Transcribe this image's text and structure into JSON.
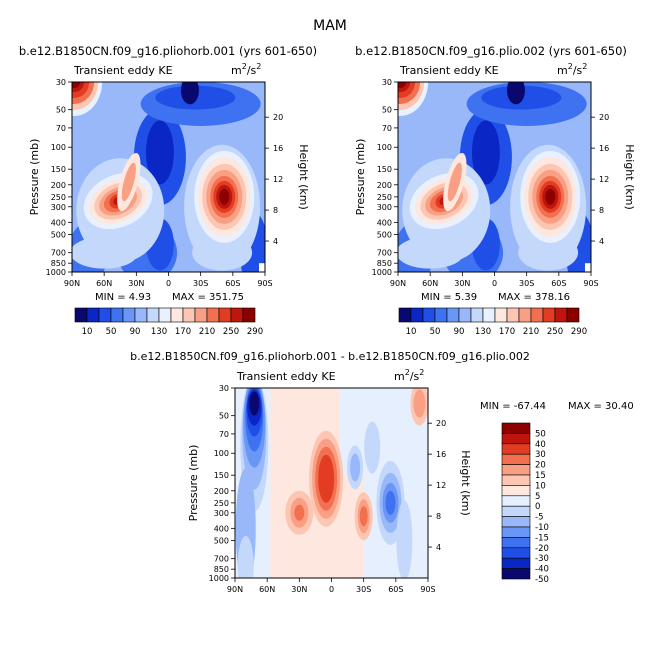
{
  "figure": {
    "season": "MAM",
    "variable": "Transient eddy KE",
    "units_base": "m",
    "units_exp": "2",
    "units_den_base": "/s",
    "units_den_exp": "2"
  },
  "colors": {
    "abs_levels_fill": [
      "#08086e",
      "#0a27c5",
      "#1f4fe6",
      "#3f72f0",
      "#6a97f6",
      "#98b8fa",
      "#c4d8fc",
      "#e9f0fe",
      "#fde7de",
      "#fcc6b3",
      "#f9a084",
      "#f26f4f",
      "#e23d22",
      "#c0140f",
      "#8c0000"
    ],
    "diff_levels_fill": [
      "#08086e",
      "#0a27c5",
      "#1f4fe6",
      "#3f72f0",
      "#6a97f6",
      "#98b8fa",
      "#c4d8fc",
      "#e6effe",
      "#fde7de",
      "#fcc6b3",
      "#f9a084",
      "#f26f4f",
      "#e23d22",
      "#c0140f",
      "#8c0000"
    ]
  },
  "chart_data": [
    {
      "type": "heatmap",
      "panel": "left",
      "title": "b.e12.B1850CN.f09_g16.pliohorb.001 (yrs 601-650)",
      "subtitle": "Transient eddy KE",
      "xlabel": "",
      "ylabel": "Pressure (mb)",
      "ylabel_right": "Height (km)",
      "x_ticks": [
        "90N",
        "60N",
        "30N",
        "0",
        "30S",
        "60S",
        "90S"
      ],
      "y_ticks": [
        "30",
        "50",
        "70",
        "100",
        "150",
        "200",
        "250",
        "300",
        "400",
        "500",
        "700",
        "850",
        "1000"
      ],
      "y_ticks_right": [
        "20",
        "16",
        "12",
        "8",
        "4"
      ],
      "min_label": "MIN = 4.93",
      "max_label": "MAX = 351.75",
      "min": 4.93,
      "max": 351.75,
      "colorbar_labels": [
        "10",
        "50",
        "90",
        "130",
        "170",
        "210",
        "250",
        "290"
      ],
      "features": [
        {
          "desc": "NH upper-troposphere jet maximum",
          "lat": 48,
          "pressure_mb": 280,
          "value": 330
        },
        {
          "desc": "SH upper-troposphere jet maximum",
          "lat": -52,
          "pressure_mb": 250,
          "value": 350
        },
        {
          "desc": "NH stratospheric polar maximum",
          "lat": 85,
          "pressure_mb": 30,
          "value": 290
        }
      ]
    },
    {
      "type": "heatmap",
      "panel": "right",
      "title": "b.e12.B1850CN.f09_g16.plio.002 (yrs 601-650)",
      "subtitle": "Transient eddy KE",
      "xlabel": "",
      "ylabel": "Pressure (mb)",
      "ylabel_right": "Height (km)",
      "x_ticks": [
        "90N",
        "60N",
        "30N",
        "0",
        "30S",
        "60S",
        "90S"
      ],
      "y_ticks": [
        "30",
        "50",
        "70",
        "100",
        "150",
        "200",
        "250",
        "300",
        "400",
        "500",
        "700",
        "850",
        "1000"
      ],
      "y_ticks_right": [
        "20",
        "16",
        "12",
        "8",
        "4"
      ],
      "min_label": "MIN = 5.39",
      "max_label": "MAX = 378.16",
      "min": 5.39,
      "max": 378.16,
      "colorbar_labels": [
        "10",
        "50",
        "90",
        "130",
        "170",
        "210",
        "250",
        "290"
      ],
      "features": [
        {
          "desc": "NH upper-troposphere jet maximum",
          "lat": 48,
          "pressure_mb": 280,
          "value": 300
        },
        {
          "desc": "SH upper-troposphere jet maximum",
          "lat": -52,
          "pressure_mb": 250,
          "value": 378
        },
        {
          "desc": "NH stratospheric polar maximum",
          "lat": 85,
          "pressure_mb": 30,
          "value": 290
        }
      ]
    },
    {
      "type": "heatmap",
      "panel": "difference",
      "title": "b.e12.B1850CN.f09_g16.pliohorb.001 - b.e12.B1850CN.f09_g16.plio.002",
      "subtitle": "Transient eddy KE",
      "xlabel": "",
      "ylabel": "Pressure (mb)",
      "ylabel_right": "Height (km)",
      "x_ticks": [
        "90N",
        "60N",
        "30N",
        "0",
        "30S",
        "60S",
        "90S"
      ],
      "y_ticks": [
        "30",
        "50",
        "70",
        "100",
        "150",
        "200",
        "250",
        "300",
        "400",
        "500",
        "700",
        "850",
        "1000"
      ],
      "y_ticks_right": [
        "20",
        "16",
        "12",
        "8",
        "4"
      ],
      "min_label": "MIN = -67.44",
      "max_label": "MAX = 30.40",
      "min": -67.44,
      "max": 30.4,
      "colorbar_labels": [
        "50",
        "40",
        "30",
        "20",
        "15",
        "10",
        "5",
        "0",
        "-5",
        "-10",
        "-15",
        "-20",
        "-30",
        "-40",
        "-50"
      ],
      "features": [
        {
          "desc": "NH high-latitude negative anomaly",
          "lat": 70,
          "pressure_mb": 30,
          "value": -60
        },
        {
          "desc": "Equatorial positive anomaly",
          "lat": 5,
          "pressure_mb": 170,
          "value": 28
        },
        {
          "desc": "SH subtropical positive anomaly",
          "lat": -32,
          "pressure_mb": 320,
          "value": 20
        },
        {
          "desc": "SH mid-latitude negative anomaly",
          "lat": -55,
          "pressure_mb": 260,
          "value": -35
        }
      ]
    }
  ]
}
